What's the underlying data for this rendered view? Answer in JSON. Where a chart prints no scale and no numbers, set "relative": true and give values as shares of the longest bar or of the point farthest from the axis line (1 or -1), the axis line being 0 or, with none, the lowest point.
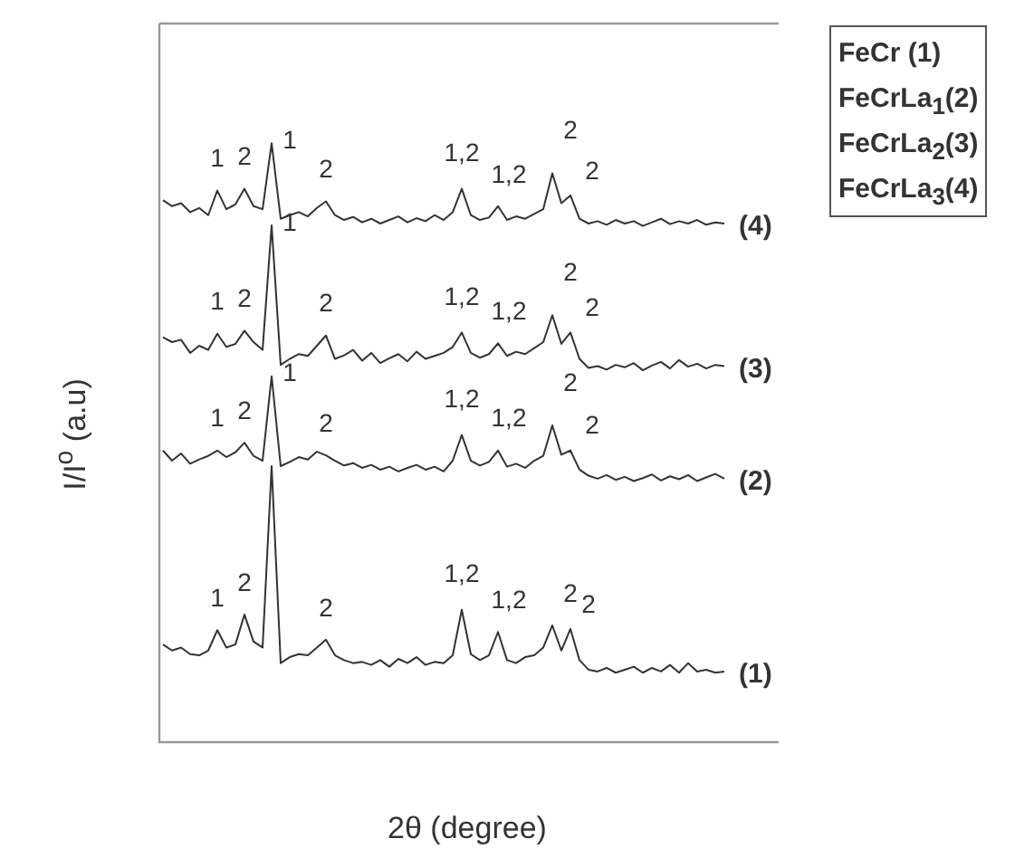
{
  "chart_data": {
    "type": "line",
    "relative": true,
    "xlabel": "2θ (degree)",
    "ylabel": "I/I$^{o}$ (a.u)",
    "tick_labels": false,
    "marker": "none",
    "line_style": "solid",
    "categories": [
      null,
      null,
      null,
      null,
      null,
      null,
      null,
      null,
      null,
      null,
      null,
      null,
      null,
      null,
      null,
      null,
      null,
      null,
      null,
      null,
      null,
      null,
      null,
      null,
      null,
      null,
      null,
      null,
      null,
      null,
      null,
      null,
      null,
      null,
      null,
      null,
      null,
      null,
      null,
      null,
      null,
      null,
      null,
      null,
      null,
      null,
      null,
      null,
      null,
      null,
      null,
      null,
      null,
      null,
      null,
      null,
      null,
      null,
      null,
      null,
      null,
      null,
      null
    ],
    "series": [
      {
        "name": "(1)",
        "color": "#333333",
        "values": [
          0.163,
          0.153,
          0.158,
          0.147,
          0.145,
          0.153,
          0.187,
          0.158,
          0.163,
          0.213,
          0.168,
          0.158,
          0.461,
          0.132,
          0.142,
          0.147,
          0.145,
          0.158,
          0.171,
          0.145,
          0.137,
          0.132,
          0.134,
          0.129,
          0.137,
          0.126,
          0.139,
          0.132,
          0.142,
          0.129,
          0.134,
          0.132,
          0.145,
          0.221,
          0.147,
          0.137,
          0.145,
          0.184,
          0.137,
          0.132,
          0.142,
          0.145,
          0.158,
          0.195,
          0.153,
          0.189,
          0.137,
          0.121,
          0.118,
          0.124,
          0.116,
          0.121,
          0.126,
          0.116,
          0.124,
          0.118,
          0.129,
          0.116,
          0.132,
          0.118,
          0.121,
          0.116,
          0.118
        ]
      },
      {
        "name": "(2)",
        "color": "#333333",
        "values": [
          0.487,
          0.47,
          0.482,
          0.465,
          0.472,
          0.478,
          0.487,
          0.476,
          0.484,
          0.5,
          0.478,
          0.47,
          0.611,
          0.461,
          0.468,
          0.476,
          0.472,
          0.485,
          0.479,
          0.47,
          0.462,
          0.466,
          0.458,
          0.463,
          0.455,
          0.46,
          0.452,
          0.458,
          0.463,
          0.455,
          0.46,
          0.452,
          0.47,
          0.513,
          0.47,
          0.462,
          0.468,
          0.487,
          0.46,
          0.465,
          0.458,
          0.47,
          0.478,
          0.529,
          0.48,
          0.487,
          0.455,
          0.445,
          0.44,
          0.446,
          0.438,
          0.443,
          0.436,
          0.441,
          0.447,
          0.437,
          0.444,
          0.439,
          0.446,
          0.436,
          0.442,
          0.448,
          0.44
        ]
      },
      {
        "name": "(3)",
        "color": "#333333",
        "values": [
          0.676,
          0.668,
          0.672,
          0.65,
          0.662,
          0.655,
          0.682,
          0.66,
          0.665,
          0.687,
          0.668,
          0.655,
          0.863,
          0.63,
          0.64,
          0.648,
          0.645,
          0.662,
          0.679,
          0.64,
          0.646,
          0.655,
          0.637,
          0.65,
          0.633,
          0.641,
          0.648,
          0.636,
          0.652,
          0.64,
          0.645,
          0.65,
          0.66,
          0.684,
          0.65,
          0.642,
          0.648,
          0.666,
          0.645,
          0.652,
          0.648,
          0.658,
          0.668,
          0.713,
          0.665,
          0.684,
          0.64,
          0.625,
          0.628,
          0.622,
          0.63,
          0.626,
          0.633,
          0.621,
          0.629,
          0.635,
          0.624,
          0.638,
          0.627,
          0.632,
          0.624,
          0.63,
          0.628
        ]
      },
      {
        "name": "(4)",
        "color": "#333333",
        "values": [
          0.905,
          0.895,
          0.9,
          0.885,
          0.892,
          0.88,
          0.921,
          0.89,
          0.898,
          0.924,
          0.895,
          0.89,
          1,
          0.874,
          0.88,
          0.885,
          0.878,
          0.892,
          0.903,
          0.88,
          0.872,
          0.877,
          0.868,
          0.874,
          0.866,
          0.872,
          0.878,
          0.868,
          0.875,
          0.87,
          0.88,
          0.872,
          0.885,
          0.924,
          0.88,
          0.872,
          0.876,
          0.895,
          0.872,
          0.878,
          0.874,
          0.882,
          0.89,
          0.95,
          0.9,
          0.913,
          0.874,
          0.866,
          0.87,
          0.864,
          0.872,
          0.866,
          0.87,
          0.862,
          0.868,
          0.874,
          0.865,
          0.87,
          0.866,
          0.872,
          0.864,
          0.868,
          0.866
        ]
      }
    ],
    "annotations": [
      "1",
      "2",
      "1",
      "2",
      "1,2",
      "1,2",
      "2",
      "2",
      "1",
      "2",
      "1",
      "2",
      "1,2",
      "1,2",
      "2",
      "2",
      "1",
      "2",
      "1",
      "2",
      "1,2",
      "1,2",
      "2",
      "2",
      "1",
      "2",
      "2",
      "1,2",
      "1,2",
      "2",
      "2",
      "FeCr (1)",
      "FeCrLa$_{1}$(2)",
      "FeCrLa$_{2}$(3)",
      "FeCrLa$_{3}$(4)"
    ]
  }
}
